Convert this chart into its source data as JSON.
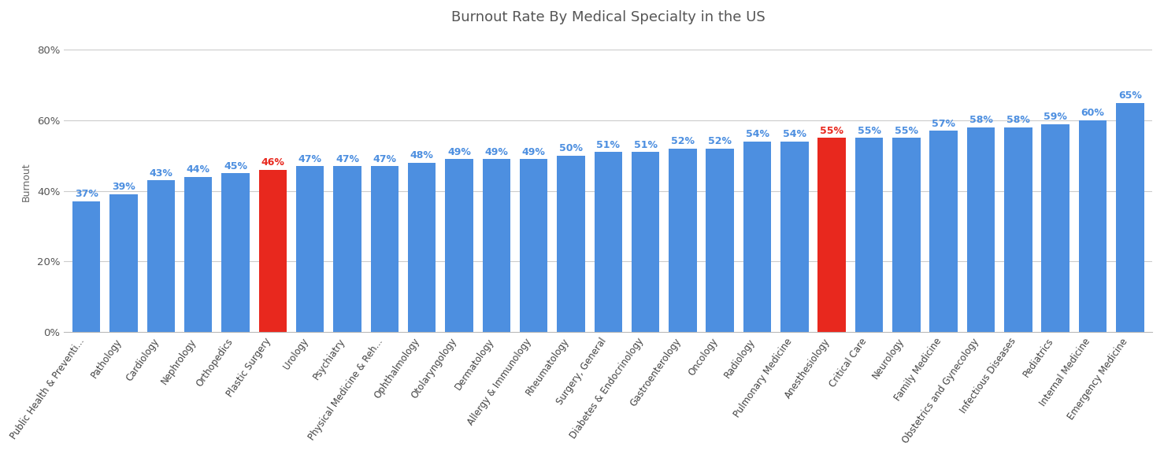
{
  "title": "Burnout Rate By Medical Specialty in the US",
  "ylabel": "Burnout",
  "categories": [
    "Public Health & Preventi...",
    "Pathology",
    "Cardiology",
    "Nephrology",
    "Orthopedics",
    "Plastic Surgery",
    "Urology",
    "Psychiatry",
    "Physical Medicine & Reh...",
    "Ophthalmology",
    "Otolaryngology",
    "Dermatology",
    "Allergy & Immunology",
    "Rheumatology",
    "Surgery, General",
    "Diabetes & Endocrinology",
    "Gastroenterology",
    "Oncology",
    "Radiology",
    "Pulmonary Medicine",
    "Anesthesiology",
    "Critical Care",
    "Neurology",
    "Family Medicine",
    "Obstetrics and Gynecology",
    "Infectious Diseases",
    "Pediatrics",
    "Internal Medicine",
    "Emergency Medicine"
  ],
  "values": [
    37,
    39,
    43,
    44,
    45,
    46,
    47,
    47,
    47,
    48,
    49,
    49,
    49,
    50,
    51,
    51,
    52,
    52,
    54,
    54,
    55,
    55,
    55,
    57,
    58,
    58,
    59,
    60,
    65
  ],
  "bar_color_default": "#4d8fe0",
  "bar_color_highlight": "#e8281e",
  "highlight_indices": [
    5,
    20
  ],
  "label_color_default": "#4d8fe0",
  "label_color_highlight": "#e8281e",
  "ylim": [
    0,
    85
  ],
  "yticks": [
    0,
    20,
    40,
    60,
    80
  ],
  "ytick_labels": [
    "0%",
    "20%",
    "40%",
    "60%",
    "80%"
  ],
  "background_color": "#ffffff",
  "grid_color": "#cccccc",
  "title_fontsize": 13,
  "label_fontsize": 9,
  "ylabel_fontsize": 9,
  "xtick_fontsize": 8.5
}
